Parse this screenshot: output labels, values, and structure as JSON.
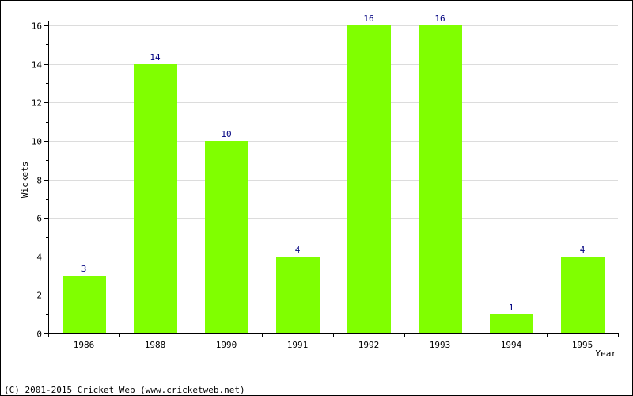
{
  "chart_data": {
    "type": "bar",
    "categories": [
      "1986",
      "1988",
      "1990",
      "1991",
      "1992",
      "1993",
      "1994",
      "1995"
    ],
    "values": [
      3,
      14,
      10,
      4,
      16,
      16,
      1,
      4
    ],
    "data_labels": [
      "3",
      "14",
      "10",
      "4",
      "16",
      "16",
      "1",
      "4"
    ],
    "title": "",
    "xlabel": "Year",
    "ylabel": "Wickets",
    "ylim": [
      0,
      16
    ],
    "yticks": [
      0,
      2,
      4,
      6,
      8,
      10,
      12,
      14,
      16
    ],
    "ytick_labels": [
      "0",
      "2",
      "4",
      "6",
      "8",
      "10",
      "12",
      "14",
      "16"
    ],
    "grid": true,
    "bar_color": "#80ff00",
    "label_color": "#000080"
  },
  "footer": {
    "copyright": "(C) 2001-2015 Cricket Web (www.cricketweb.net)"
  }
}
